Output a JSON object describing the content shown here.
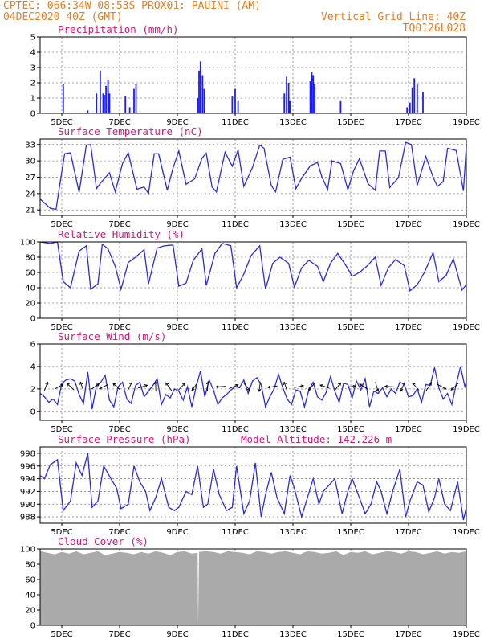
{
  "header": {
    "line1_left": "CPTEC:   066:34W-08:53S   PROX01: PAUINI (AM)",
    "line2_left": "04DEC2020 40Z (GMT)",
    "line2_right": "Vertical Grid Line: 40Z",
    "line3_right": "TQ0126L028"
  },
  "x_axis": {
    "ticks": [
      "5DEC",
      "7DEC",
      "9DEC",
      "11DEC",
      "13DEC",
      "15DEC",
      "17DEC",
      "19DEC"
    ],
    "start_day": 4.25,
    "end_day": 19
  },
  "chart_data": [
    {
      "id": "precip",
      "type": "bar",
      "title": "Precipitation (mm/h)",
      "ylim": [
        0,
        5
      ],
      "yticks": [
        0,
        1,
        2,
        3,
        4,
        5
      ],
      "grid": true,
      "color": "#1d1df0",
      "x_unit": "day of December 2020",
      "x": [
        5.05,
        5.9,
        6.2,
        6.33,
        6.43,
        6.47,
        6.53,
        6.6,
        6.65,
        7.2,
        7.35,
        7.5,
        7.57,
        9.7,
        9.75,
        9.8,
        9.87,
        9.93,
        10.9,
        11.0,
        11.1,
        12.7,
        12.78,
        12.85,
        12.9,
        13.6,
        13.65,
        13.7,
        13.75,
        14.65,
        16.95,
        17.05,
        17.13,
        17.2,
        17.3,
        17.5
      ],
      "values": [
        1.9,
        0.2,
        1.3,
        2.8,
        1.3,
        1.2,
        1.8,
        2.2,
        1.3,
        1.1,
        0.4,
        1.6,
        1.9,
        1.0,
        2.8,
        3.4,
        2.5,
        1.6,
        1.1,
        1.6,
        0.8,
        1.3,
        2.4,
        2.0,
        0.8,
        2.1,
        2.7,
        2.5,
        1.9,
        0.8,
        0.4,
        0.7,
        1.7,
        2.3,
        1.9,
        1.4
      ]
    },
    {
      "id": "temp",
      "type": "line",
      "title": "Surface Temperature (nC)",
      "ylim": [
        20,
        34
      ],
      "yticks": [
        21,
        24,
        27,
        30,
        33
      ],
      "grid": true,
      "color": "#2b2bd9",
      "x_unit": "day of December 2020",
      "x": [
        4.25,
        4.6,
        4.8,
        5.0,
        5.1,
        5.3,
        5.6,
        5.85,
        6.0,
        6.2,
        6.35,
        6.65,
        6.85,
        7.1,
        7.3,
        7.6,
        7.85,
        8.0,
        8.2,
        8.35,
        8.65,
        8.85,
        9.05,
        9.3,
        9.6,
        9.85,
        10.0,
        10.2,
        10.35,
        10.65,
        10.9,
        11.1,
        11.3,
        11.6,
        11.85,
        12.0,
        12.25,
        12.4,
        12.65,
        12.9,
        13.1,
        13.3,
        13.6,
        13.85,
        14.0,
        14.2,
        14.35,
        14.65,
        14.9,
        15.1,
        15.3,
        15.6,
        15.85,
        16.0,
        16.2,
        16.35,
        16.65,
        16.9,
        17.1,
        17.3,
        17.6,
        17.85,
        18.0,
        18.2,
        18.35,
        18.65,
        18.9,
        19.0
      ],
      "values": [
        23.0,
        21.3,
        21.1,
        28.0,
        31.3,
        31.5,
        24.2,
        32.9,
        33.0,
        24.9,
        26.0,
        27.8,
        24.3,
        29.5,
        31.5,
        24.8,
        25.2,
        24.0,
        31.3,
        31.3,
        24.6,
        28.7,
        31.8,
        25.7,
        26.7,
        30.5,
        31.4,
        25.2,
        24.3,
        31.6,
        29.0,
        32.0,
        25.3,
        28.8,
        32.9,
        32.3,
        25.5,
        24.3,
        30.3,
        30.7,
        24.9,
        26.8,
        29.1,
        29.7,
        27.1,
        24.7,
        30.0,
        29.5,
        24.7,
        28.2,
        30.4,
        25.8,
        24.6,
        31.8,
        31.8,
        25.1,
        26.9,
        33.4,
        33.0,
        25.5,
        30.8,
        27.0,
        25.3,
        26.2,
        32.3,
        31.9,
        24.5,
        32.8
      ]
    },
    {
      "id": "rh",
      "type": "line",
      "title": "Relative Humidity (%)",
      "ylim": [
        0,
        100
      ],
      "yticks": [
        0,
        20,
        40,
        60,
        80,
        100
      ],
      "grid": true,
      "color": "#2b2bd9",
      "x_unit": "day of December 2020",
      "x": [
        4.25,
        4.6,
        4.85,
        5.05,
        5.3,
        5.6,
        5.85,
        6.0,
        6.25,
        6.4,
        6.6,
        6.85,
        7.05,
        7.3,
        7.55,
        7.85,
        8.0,
        8.3,
        8.55,
        8.85,
        9.05,
        9.3,
        9.55,
        9.85,
        10.0,
        10.3,
        10.55,
        10.85,
        11.05,
        11.3,
        11.55,
        11.85,
        12.05,
        12.3,
        12.55,
        12.85,
        13.05,
        13.3,
        13.55,
        13.85,
        14.05,
        14.3,
        14.55,
        14.85,
        15.05,
        15.3,
        15.55,
        15.85,
        16.05,
        16.3,
        16.55,
        16.85,
        17.05,
        17.3,
        17.55,
        17.85,
        18.05,
        18.3,
        18.55,
        18.85,
        19.0
      ],
      "values": [
        100,
        98,
        100,
        48,
        40,
        88,
        95,
        38,
        45,
        97,
        91,
        68,
        38,
        73,
        80,
        90,
        45,
        92,
        95,
        96,
        42,
        46,
        76,
        91,
        43,
        85,
        98,
        95,
        40,
        58,
        82,
        95,
        38,
        72,
        80,
        72,
        41,
        66,
        76,
        68,
        48,
        72,
        85,
        68,
        55,
        60,
        68,
        80,
        43,
        66,
        77,
        69,
        36,
        44,
        60,
        86,
        48,
        56,
        78,
        37,
        44
      ]
    },
    {
      "id": "wind",
      "type": "line",
      "title": "Surface Wind (m/s)",
      "ylim": [
        -0.8,
        6
      ],
      "yticks": [
        0,
        2,
        4,
        6
      ],
      "grid": true,
      "color": "#2b2bd9",
      "x_unit": "day of December 2020",
      "x": [
        4.25,
        4.4,
        4.55,
        4.7,
        4.85,
        5.0,
        5.15,
        5.3,
        5.45,
        5.6,
        5.75,
        5.9,
        6.05,
        6.2,
        6.35,
        6.5,
        6.65,
        6.8,
        6.95,
        7.1,
        7.25,
        7.4,
        7.55,
        7.7,
        7.85,
        8.0,
        8.15,
        8.3,
        8.45,
        8.6,
        8.75,
        8.9,
        9.05,
        9.2,
        9.35,
        9.5,
        9.65,
        9.8,
        9.95,
        10.1,
        10.25,
        10.4,
        10.55,
        10.7,
        10.85,
        11.0,
        11.15,
        11.3,
        11.45,
        11.6,
        11.75,
        11.9,
        12.05,
        12.2,
        12.35,
        12.5,
        12.65,
        12.8,
        12.95,
        13.1,
        13.25,
        13.4,
        13.55,
        13.7,
        13.85,
        14.0,
        14.15,
        14.3,
        14.45,
        14.6,
        14.75,
        14.9,
        15.05,
        15.2,
        15.35,
        15.5,
        15.65,
        15.8,
        15.95,
        16.1,
        16.25,
        16.4,
        16.55,
        16.7,
        16.85,
        17.0,
        17.15,
        17.3,
        17.45,
        17.6,
        17.75,
        17.9,
        18.05,
        18.2,
        18.35,
        18.5,
        18.65,
        18.8,
        18.95,
        19.0
      ],
      "values": [
        1.6,
        1.3,
        0.8,
        1.1,
        0.6,
        2.5,
        2.8,
        2.9,
        2.7,
        1.5,
        0.7,
        3.5,
        0.2,
        2.3,
        2.6,
        3.2,
        1.0,
        0.4,
        2.2,
        2.6,
        1.1,
        0.7,
        2.3,
        2.6,
        1.3,
        1.8,
        2.3,
        2.9,
        0.6,
        1.5,
        1.2,
        2.0,
        1.8,
        1.0,
        2.2,
        0.4,
        2.2,
        3.6,
        1.3,
        2.8,
        1.9,
        0.6,
        1.2,
        1.5,
        1.9,
        2.2,
        2.1,
        2.8,
        1.6,
        2.7,
        3.0,
        2.4,
        0.4,
        1.3,
        2.0,
        3.3,
        2.1,
        1.1,
        0.6,
        1.9,
        1.8,
        0.4,
        1.9,
        2.6,
        1.3,
        1.0,
        1.7,
        3.1,
        1.8,
        0.8,
        2.5,
        2.4,
        1.2,
        2.7,
        1.9,
        2.9,
        0.4,
        1.8,
        1.6,
        2.1,
        1.3,
        2.0,
        1.6,
        2.6,
        2.4,
        1.3,
        1.4,
        2.0,
        0.8,
        2.4,
        2.3,
        3.9,
        2.1,
        1.1,
        1.6,
        0.6,
        2.4,
        4.0,
        2.2,
        2.6
      ],
      "arrows_x": [
        4.45,
        4.9,
        5.3,
        5.7,
        6.15,
        6.45,
        6.9,
        7.35,
        7.8,
        8.25,
        8.7,
        9.15,
        9.6,
        10.05,
        10.5,
        10.95,
        11.4,
        11.85,
        12.3,
        12.75,
        13.2,
        13.65,
        14.1,
        14.55,
        15.0,
        15.45,
        15.9,
        16.35,
        16.8,
        17.25,
        17.7,
        18.15,
        18.6
      ],
      "arrows_dir": [
        1.2,
        0.5,
        2.4,
        1.9,
        0.6,
        3.6,
        2.4,
        1.1,
        0.3,
        1.6,
        2.2,
        0.8,
        4.1,
        1.5,
        3.2,
        0.4,
        5.4,
        4.6,
        3.3,
        1.9,
        0.2,
        4.0,
        2.8,
        0.9,
        0.1,
        2.6,
        5.0,
        3.1,
        4.3,
        2.3,
        1.0,
        5.8,
        3.9
      ]
    },
    {
      "id": "pres",
      "type": "line",
      "title": "Surface Pressure (hPa)",
      "extra_label": "Model Altitude: 142.226 m",
      "ylim": [
        987,
        999
      ],
      "yticks": [
        988,
        990,
        992,
        994,
        996,
        998
      ],
      "grid": true,
      "color": "#2b2bd9",
      "x_unit": "day of December 2020",
      "x": [
        4.25,
        4.4,
        4.6,
        4.85,
        5.05,
        5.3,
        5.5,
        5.7,
        5.9,
        6.05,
        6.25,
        6.45,
        6.7,
        6.9,
        7.05,
        7.3,
        7.5,
        7.7,
        7.9,
        8.05,
        8.25,
        8.45,
        8.7,
        8.9,
        9.05,
        9.3,
        9.5,
        9.7,
        9.9,
        10.05,
        10.25,
        10.45,
        10.7,
        10.9,
        11.05,
        11.3,
        11.5,
        11.7,
        11.9,
        12.05,
        12.25,
        12.45,
        12.7,
        12.9,
        13.05,
        13.3,
        13.5,
        13.7,
        13.9,
        14.05,
        14.25,
        14.45,
        14.7,
        14.9,
        15.05,
        15.3,
        15.5,
        15.7,
        15.9,
        16.05,
        16.25,
        16.45,
        16.7,
        16.9,
        17.05,
        17.3,
        17.5,
        17.7,
        17.9,
        18.05,
        18.25,
        18.45,
        18.7,
        18.9,
        19.0
      ],
      "values": [
        994.5,
        994.0,
        996.2,
        997.0,
        989.0,
        990.5,
        996.5,
        994.5,
        998.0,
        989.5,
        990.5,
        996.0,
        994.0,
        992.5,
        989.3,
        990.0,
        996.0,
        993.5,
        992.0,
        989.0,
        991.0,
        994.0,
        989.5,
        989.0,
        989.5,
        992.0,
        991.5,
        996.0,
        989.5,
        990.0,
        995.5,
        991.5,
        989.0,
        989.5,
        996.0,
        988.5,
        990.5,
        996.5,
        988.0,
        991.5,
        995.0,
        991.0,
        988.5,
        994.5,
        992.5,
        988.0,
        991.0,
        994.0,
        990.0,
        992.0,
        993.0,
        994.0,
        988.5,
        992.0,
        994.0,
        991.0,
        988.5,
        990.0,
        993.5,
        992.0,
        988.5,
        992.0,
        995.5,
        988.0,
        990.5,
        993.5,
        993.0,
        988.8,
        991.0,
        994.0,
        990.0,
        989.0,
        993.5,
        987.5,
        989.5
      ]
    },
    {
      "id": "cloud",
      "type": "area",
      "title": "Cloud Cover (%)",
      "ylim": [
        0,
        100
      ],
      "yticks": [
        0,
        20,
        40,
        60,
        80,
        100
      ],
      "grid": true,
      "color": "#aaaaaa",
      "x_unit": "day of December 2020",
      "x": [
        4.25,
        4.5,
        4.75,
        5.0,
        5.25,
        5.5,
        5.75,
        6.0,
        6.25,
        6.5,
        6.75,
        7.0,
        7.25,
        7.5,
        7.75,
        8.0,
        8.25,
        8.5,
        8.75,
        9.0,
        9.25,
        9.5,
        9.7,
        9.72,
        9.75,
        10.0,
        10.25,
        10.5,
        10.75,
        11.0,
        11.25,
        11.5,
        11.75,
        12.0,
        12.25,
        12.5,
        12.75,
        13.0,
        13.25,
        13.5,
        13.75,
        14.0,
        14.25,
        14.5,
        14.75,
        15.0,
        15.25,
        15.5,
        15.75,
        16.0,
        16.25,
        16.5,
        16.75,
        17.0,
        17.25,
        17.5,
        17.75,
        18.0,
        18.25,
        18.5,
        18.75,
        19.0
      ],
      "values": [
        97,
        95,
        93,
        96,
        94,
        97,
        93,
        95,
        97,
        92,
        94,
        96,
        95,
        93,
        96,
        94,
        97,
        95,
        92,
        96,
        97,
        94,
        95,
        2,
        96,
        97,
        96,
        94,
        97,
        96,
        95,
        93,
        97,
        96,
        94,
        96,
        97,
        95,
        93,
        97,
        96,
        94,
        95,
        97,
        92,
        96,
        95,
        97,
        93,
        95,
        97,
        96,
        94,
        97,
        96,
        93,
        95,
        97,
        94,
        96,
        95,
        97
      ]
    }
  ]
}
